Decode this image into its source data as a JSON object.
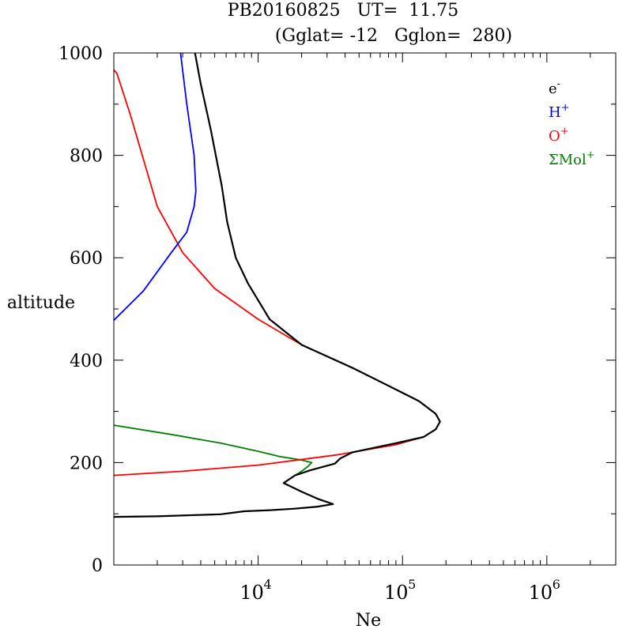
{
  "chart_data": {
    "type": "line",
    "title_line1": "PB20160825   UT=  11.75",
    "title_line2": "(Gglat= -12   Gglon=  280)",
    "xlabel": "Ne",
    "ylabel": "altitude",
    "x_scale": "log",
    "xlim": [
      1000,
      3000000
    ],
    "ylim": [
      0,
      1000
    ],
    "y_ticks": [
      0,
      200,
      400,
      600,
      800,
      1000
    ],
    "x_tick_labels": [
      {
        "value": 10000,
        "base": "10",
        "exp": "4"
      },
      {
        "value": 100000,
        "base": "10",
        "exp": "5"
      },
      {
        "value": 1000000,
        "base": "10",
        "exp": "6"
      }
    ],
    "legend": {
      "position": "top-right",
      "items": [
        {
          "base": "e",
          "sup": "-",
          "color": "#000000"
        },
        {
          "base": "H",
          "sup": "+",
          "color": "#0000ff"
        },
        {
          "base": "O",
          "sup": "+",
          "color": "#ff0000"
        },
        {
          "base": "ΣMol",
          "sup": "+",
          "color": "#008000"
        }
      ]
    },
    "series": [
      {
        "color": "#008000",
        "points": [
          [
            1000,
            273
          ],
          [
            2500,
            255
          ],
          [
            5500,
            238
          ],
          [
            10000,
            222
          ],
          [
            14000,
            212
          ],
          [
            20000,
            205
          ],
          [
            23500,
            200
          ],
          [
            22000,
            192
          ],
          [
            20000,
            183
          ],
          [
            18000,
            175
          ],
          [
            15000,
            160
          ],
          [
            20000,
            143
          ],
          [
            26000,
            129
          ],
          [
            33000,
            119
          ],
          [
            26000,
            114
          ],
          [
            18000,
            110
          ],
          [
            12000,
            107
          ],
          [
            8000,
            105
          ],
          [
            5500,
            99
          ],
          [
            2000,
            95
          ],
          [
            1000,
            94
          ]
        ]
      },
      {
        "color": "#ff0000",
        "points": [
          [
            1000,
            175
          ],
          [
            3000,
            183
          ],
          [
            10000,
            195
          ],
          [
            35000,
            215
          ],
          [
            90000,
            235
          ],
          [
            140000,
            250
          ],
          [
            170000,
            265
          ],
          [
            182000,
            280
          ],
          [
            170000,
            295
          ],
          [
            130000,
            320
          ],
          [
            80000,
            350
          ],
          [
            45000,
            385
          ],
          [
            20000,
            430
          ],
          [
            10000,
            480
          ],
          [
            5000,
            540
          ],
          [
            3000,
            610
          ],
          [
            2000,
            700
          ],
          [
            1300,
            880
          ],
          [
            1050,
            960
          ],
          [
            1000,
            967
          ]
        ]
      },
      {
        "color": "#0000ff",
        "points": [
          [
            1000,
            478
          ],
          [
            1600,
            535
          ],
          [
            2500,
            610
          ],
          [
            3200,
            650
          ],
          [
            3600,
            700
          ],
          [
            3700,
            730
          ],
          [
            3600,
            800
          ],
          [
            3200,
            900
          ],
          [
            2900,
            1000
          ]
        ]
      },
      {
        "color": "#000000",
        "points": [
          [
            1000,
            94
          ],
          [
            2000,
            95
          ],
          [
            5500,
            99
          ],
          [
            8000,
            105
          ],
          [
            12000,
            107
          ],
          [
            18000,
            110
          ],
          [
            26000,
            114
          ],
          [
            33000,
            119
          ],
          [
            26000,
            129
          ],
          [
            20000,
            143
          ],
          [
            15000,
            160
          ],
          [
            18000,
            175
          ],
          [
            23000,
            185
          ],
          [
            34000,
            198
          ],
          [
            37000,
            208
          ],
          [
            45000,
            220
          ],
          [
            90000,
            238
          ],
          [
            140000,
            250
          ],
          [
            170000,
            265
          ],
          [
            182000,
            280
          ],
          [
            170000,
            295
          ],
          [
            130000,
            320
          ],
          [
            80000,
            350
          ],
          [
            45000,
            385
          ],
          [
            20000,
            430
          ],
          [
            12000,
            480
          ],
          [
            8500,
            550
          ],
          [
            7000,
            600
          ],
          [
            6100,
            670
          ],
          [
            5600,
            740
          ],
          [
            4700,
            850
          ],
          [
            4000,
            940
          ],
          [
            3650,
            1000
          ]
        ]
      }
    ]
  }
}
